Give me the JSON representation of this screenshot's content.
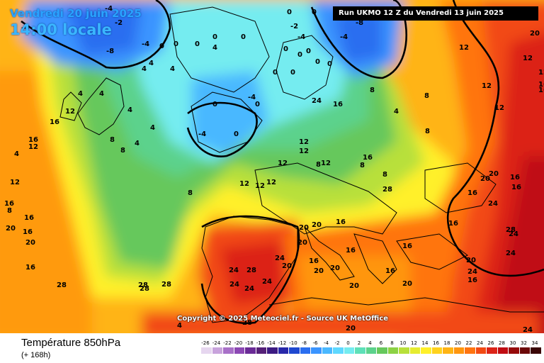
{
  "header": {
    "date": "Vendredi 20 juin 2025",
    "time": "14:00 locale",
    "run": "Run UKMO 12 Z du Vendredi 13 juin 2025"
  },
  "copyright": "Copyright © 2025 Meteociel.fr - Source UK MetOffice",
  "footer": {
    "title": "Température 850hPa",
    "subtitle": "(+ 168h)"
  },
  "legend": {
    "values": [
      "-26",
      "-24",
      "-22",
      "-20",
      "-18",
      "-16",
      "-14",
      "-12",
      "-10",
      "-8",
      "-6",
      "-4",
      "-2",
      "0",
      "2",
      "4",
      "6",
      "8",
      "10",
      "12",
      "14",
      "16",
      "18",
      "20",
      "22",
      "24",
      "26",
      "28",
      "30",
      "32",
      "34"
    ],
    "colors": [
      "#e6d6ef",
      "#c8a3dc",
      "#a870c8",
      "#8c48b4",
      "#6a2a96",
      "#552078",
      "#3c1a82",
      "#2828aa",
      "#1f48d0",
      "#2a6ef0",
      "#3a94ff",
      "#4ab8ff",
      "#5ed8ff",
      "#74ecf0",
      "#5ee0b8",
      "#5cd28c",
      "#66c85c",
      "#8cd244",
      "#b8e03a",
      "#e6ec30",
      "#fff02a",
      "#ffd21c",
      "#ffb414",
      "#ff960e",
      "#ff7410",
      "#f24a14",
      "#dc2418",
      "#c00c12",
      "#960a0a",
      "#6c0808",
      "#3a0606"
    ]
  },
  "map": {
    "labels": [
      "-4",
      "-2",
      "-4",
      "-8",
      "-4",
      "0",
      "0",
      "0",
      "0",
      "0",
      "0",
      "-2",
      "-4",
      "0",
      "-4",
      "-8",
      "0",
      "0",
      "0",
      "0",
      "0",
      "0",
      "0",
      "4",
      "4",
      "4",
      "4",
      "-4",
      "0",
      "-4",
      "0",
      "4",
      "4",
      "0",
      "4",
      "12",
      "16",
      "8",
      "8",
      "4",
      "4",
      "12",
      "12",
      "12",
      "8",
      "12",
      "12",
      "12",
      "8",
      "8",
      "8",
      "8",
      "12",
      "16",
      "16",
      "16",
      "20",
      "20",
      "20",
      "16",
      "24",
      "28",
      "24",
      "24",
      "24",
      "24",
      "20",
      "20",
      "20",
      "20",
      "20",
      "16",
      "16",
      "16",
      "20",
      "20",
      "24",
      "28",
      "20",
      "16",
      "16",
      "8",
      "8",
      "4",
      "12",
      "12",
      "12",
      "12",
      "16",
      "16",
      "20",
      "20",
      "16",
      "28",
      "28",
      "28",
      "28",
      "20",
      "24",
      "24",
      "24",
      "24",
      "20",
      "12",
      "12",
      "16",
      "16",
      "16",
      "16",
      "16",
      "16",
      "8",
      "12",
      "4",
      "4",
      "28",
      "28",
      "16",
      "24"
    ]
  }
}
